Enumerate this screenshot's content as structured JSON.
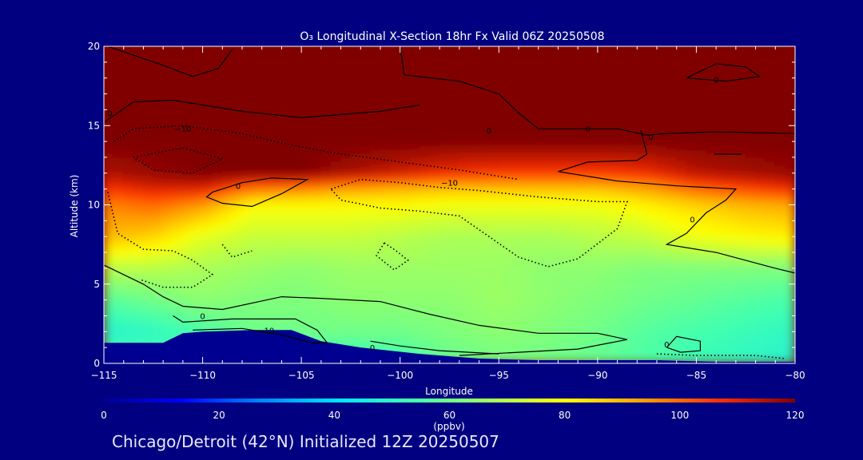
{
  "chart_data": {
    "type": "heatmap",
    "title": "O₃ Longitudinal X-Section 18hr  Fx Valid 06Z 20250508",
    "xlabel": "Longitude",
    "ylabel": "Altitude (km)",
    "xlim": [
      -115,
      -80
    ],
    "ylim": [
      0,
      20
    ],
    "x_ticks": [
      -115,
      -110,
      -105,
      -100,
      -95,
      -90,
      -85,
      -80
    ],
    "x_tick_labels": [
      "−115",
      "−110",
      "−105",
      "−100",
      "−95",
      "−90",
      "−85",
      "−80"
    ],
    "y_ticks": [
      0,
      5,
      10,
      15,
      20
    ],
    "y_tick_labels": [
      "0",
      "5",
      "10",
      "15",
      "20"
    ],
    "colorbar": {
      "label": "(ppbv)",
      "range": [
        0,
        120
      ],
      "ticks": [
        0,
        20,
        40,
        60,
        80,
        100,
        120
      ],
      "tick_labels": [
        "0",
        "20",
        "40",
        "60",
        "80",
        "100",
        "120"
      ],
      "colors": [
        "#000090",
        "#0000ff",
        "#0080ff",
        "#00e0ff",
        "#40ffb0",
        "#a0ff60",
        "#ffff00",
        "#ffa000",
        "#ff3000",
        "#800000"
      ]
    },
    "field_columns": [
      -115,
      -112.5,
      -110,
      -107.5,
      -105,
      -102.5,
      -100,
      -97.5,
      -95,
      -92.5,
      -90,
      -87.5,
      -85,
      -82.5,
      -80
    ],
    "field_levels": [
      {
        "alt": 0,
        "values": [
          58,
          56,
          54,
          52,
          50,
          50,
          52,
          58,
          60,
          60,
          58,
          55,
          52,
          50,
          48
        ]
      },
      {
        "alt": 2,
        "values": [
          48,
          50,
          54,
          60,
          60,
          60,
          60,
          62,
          64,
          62,
          60,
          56,
          54,
          52,
          50
        ]
      },
      {
        "alt": 4,
        "values": [
          56,
          60,
          64,
          62,
          62,
          64,
          64,
          64,
          66,
          64,
          62,
          60,
          58,
          56,
          54
        ]
      },
      {
        "alt": 6,
        "values": [
          70,
          70,
          68,
          66,
          64,
          66,
          66,
          66,
          66,
          64,
          64,
          62,
          62,
          62,
          62
        ]
      },
      {
        "alt": 8,
        "values": [
          90,
          86,
          76,
          72,
          72,
          72,
          70,
          68,
          68,
          68,
          70,
          72,
          78,
          80,
          82
        ]
      },
      {
        "alt": 10,
        "values": [
          96,
          100,
          94,
          80,
          80,
          80,
          80,
          78,
          78,
          78,
          78,
          82,
          86,
          90,
          92
        ]
      },
      {
        "alt": 11,
        "values": [
          106,
          110,
          110,
          98,
          96,
          92,
          90,
          88,
          88,
          88,
          88,
          92,
          100,
          104,
          108
        ]
      },
      {
        "alt": 12,
        "values": [
          115,
          118,
          120,
          120,
          120,
          116,
          112,
          108,
          106,
          106,
          106,
          108,
          114,
          116,
          118
        ]
      },
      {
        "alt": 14,
        "values": [
          120,
          120,
          120,
          120,
          120,
          120,
          120,
          120,
          120,
          120,
          120,
          120,
          120,
          120,
          120
        ]
      },
      {
        "alt": 20,
        "values": [
          120,
          120,
          120,
          120,
          120,
          120,
          120,
          120,
          120,
          120,
          120,
          120,
          120,
          120,
          120
        ]
      }
    ],
    "terrain": [
      {
        "lon": -115,
        "alt": 1.3
      },
      {
        "lon": -112,
        "alt": 1.3
      },
      {
        "lon": -111,
        "alt": 1.9
      },
      {
        "lon": -110,
        "alt": 2.0
      },
      {
        "lon": -107.5,
        "alt": 2.1
      },
      {
        "lon": -105.5,
        "alt": 2.1
      },
      {
        "lon": -104,
        "alt": 1.4
      },
      {
        "lon": -102,
        "alt": 1.0
      },
      {
        "lon": -99,
        "alt": 0.6
      },
      {
        "lon": -96,
        "alt": 0.3
      },
      {
        "lon": -93,
        "alt": 0.2
      },
      {
        "lon": -90,
        "alt": 0.2
      },
      {
        "lon": -87,
        "alt": 0.2
      },
      {
        "lon": -84,
        "alt": 0.1
      },
      {
        "lon": -80,
        "alt": 0.1
      }
    ],
    "contours": [
      {
        "value": 0,
        "style": "solid",
        "points": [
          [
            -114.8,
            20
          ],
          [
            -112,
            18.8
          ],
          [
            -110.5,
            18.1
          ],
          [
            -109.2,
            18.6
          ],
          [
            -108.5,
            19.8
          ]
        ]
      },
      {
        "value": 0,
        "style": "solid",
        "points": [
          [
            -115,
            15.2
          ],
          [
            -113.5,
            16.5
          ],
          [
            -111.5,
            16.6
          ],
          [
            -108,
            15.9
          ],
          [
            -105,
            15.5
          ],
          [
            -101,
            15.9
          ],
          [
            -99,
            16.3
          ]
        ]
      },
      {
        "value": 0,
        "style": "solid",
        "points": [
          [
            -100,
            20
          ],
          [
            -99.8,
            18.2
          ],
          [
            -97,
            17.8
          ],
          [
            -95,
            17
          ],
          [
            -94,
            15.8
          ],
          [
            -93,
            14.8
          ],
          [
            -89,
            14.8
          ],
          [
            -87.5,
            14.4
          ],
          [
            -86.5,
            14.5
          ],
          [
            -84,
            14.6
          ],
          [
            -80,
            14.5
          ]
        ]
      },
      {
        "value": 0,
        "style": "solid",
        "points": [
          [
            -87.8,
            14.7
          ],
          [
            -87.5,
            13.2
          ],
          [
            -88,
            12.8
          ],
          [
            -90.5,
            12.7
          ],
          [
            -92,
            12.1
          ],
          [
            -89,
            11.5
          ],
          [
            -86,
            11.2
          ],
          [
            -83,
            11.0
          ],
          [
            -83.5,
            10.3
          ],
          [
            -84.5,
            9.5
          ],
          [
            -85.5,
            8.2
          ],
          [
            -86.5,
            7.5
          ],
          [
            -84,
            7.0
          ],
          [
            -81,
            6.0
          ],
          [
            -80,
            5.7
          ]
        ]
      },
      {
        "value": 0,
        "style": "solid",
        "points": [
          [
            -84.1,
            13.2
          ],
          [
            -82.7,
            13.2
          ]
        ]
      },
      {
        "value": 0,
        "style": "solid",
        "points": [
          [
            -85.5,
            18.0
          ],
          [
            -84,
            18.9
          ],
          [
            -82.5,
            18.7
          ],
          [
            -81.8,
            18.1
          ],
          [
            -83.5,
            17.8
          ],
          [
            -85.5,
            18.0
          ]
        ]
      },
      {
        "value": 0,
        "style": "solid",
        "points": [
          [
            -109.5,
            10.8
          ],
          [
            -108,
            11.4
          ],
          [
            -106.5,
            11.7
          ],
          [
            -104.7,
            11.6
          ],
          [
            -106,
            10.7
          ],
          [
            -107.5,
            9.9
          ],
          [
            -109,
            10.1
          ],
          [
            -109.8,
            10.5
          ],
          [
            -109.5,
            10.8
          ]
        ]
      },
      {
        "value": 0,
        "style": "solid",
        "points": [
          [
            -115,
            6.2
          ],
          [
            -113,
            5.0
          ],
          [
            -112,
            4.2
          ],
          [
            -111,
            3.6
          ],
          [
            -109,
            3.4
          ],
          [
            -106,
            4.2
          ],
          [
            -104,
            4.1
          ],
          [
            -101,
            3.9
          ],
          [
            -98.5,
            3.1
          ],
          [
            -96,
            2.4
          ],
          [
            -93,
            1.9
          ],
          [
            -90,
            1.9
          ],
          [
            -88.5,
            1.5
          ],
          [
            -91,
            0.9
          ],
          [
            -97,
            0.5
          ]
        ]
      },
      {
        "value": 0,
        "style": "solid",
        "points": [
          [
            -111.5,
            3.0
          ],
          [
            -111,
            2.6
          ],
          [
            -108.5,
            2.8
          ],
          [
            -105.3,
            2.8
          ],
          [
            -104.2,
            2.1
          ],
          [
            -103.7,
            1.3
          ],
          [
            -104.5,
            1.3
          ],
          [
            -106,
            1.8
          ],
          [
            -108,
            2.2
          ],
          [
            -110.5,
            2.1
          ]
        ]
      },
      {
        "value": 0,
        "style": "solid",
        "points": [
          [
            -101.5,
            1.4
          ],
          [
            -100,
            1.1
          ],
          [
            -98,
            0.8
          ],
          [
            -95,
            0.6
          ]
        ]
      },
      {
        "value": 0,
        "style": "solid",
        "points": [
          [
            -86.5,
            1.0
          ],
          [
            -86.0,
            1.7
          ],
          [
            -84.8,
            1.4
          ],
          [
            -84.8,
            0.8
          ],
          [
            -85.8,
            0.7
          ],
          [
            -86.5,
            1.0
          ]
        ]
      },
      {
        "value": -10,
        "style": "dotted",
        "points": [
          [
            -114.5,
            14.0
          ],
          [
            -113.5,
            14.8
          ],
          [
            -111,
            15.0
          ],
          [
            -108,
            14.5
          ],
          [
            -106,
            13.9
          ],
          [
            -103.5,
            13.3
          ],
          [
            -100,
            12.7
          ],
          [
            -97,
            12.2
          ],
          [
            -94,
            11.6
          ]
        ]
      },
      {
        "value": -10,
        "style": "dotted",
        "points": [
          [
            -113.5,
            13.0
          ],
          [
            -111,
            13.6
          ],
          [
            -109,
            12.9
          ],
          [
            -110.5,
            12.0
          ],
          [
            -112.5,
            12.2
          ],
          [
            -113.5,
            13.0
          ]
        ]
      },
      {
        "value": -10,
        "style": "dotted",
        "points": [
          [
            -114.8,
            10.8
          ],
          [
            -114.3,
            8.2
          ],
          [
            -113,
            7.2
          ],
          [
            -111.5,
            7.1
          ],
          [
            -110.5,
            6.5
          ],
          [
            -109.5,
            5.6
          ],
          [
            -110.5,
            4.8
          ],
          [
            -112,
            4.8
          ],
          [
            -113.2,
            5.3
          ]
        ]
      },
      {
        "value": -10,
        "style": "dotted",
        "points": [
          [
            -103.5,
            11.0
          ],
          [
            -102,
            11.6
          ],
          [
            -100,
            11.4
          ],
          [
            -98,
            11.1
          ],
          [
            -96,
            10.9
          ],
          [
            -93,
            10.5
          ],
          [
            -90,
            10.2
          ],
          [
            -88.5,
            10.2
          ],
          [
            -89,
            8.5
          ],
          [
            -91,
            6.6
          ],
          [
            -92.5,
            6.1
          ],
          [
            -94,
            6.7
          ],
          [
            -95.5,
            8.0
          ],
          [
            -97,
            9.3
          ],
          [
            -99,
            9.6
          ],
          [
            -101,
            9.8
          ],
          [
            -103,
            10.3
          ],
          [
            -103.5,
            11.0
          ]
        ]
      },
      {
        "value": -10,
        "style": "dotted",
        "points": [
          [
            -100.8,
            7.6
          ],
          [
            -100.2,
            7.1
          ],
          [
            -99.6,
            6.5
          ],
          [
            -100.3,
            5.9
          ],
          [
            -101.2,
            6.8
          ],
          [
            -100.8,
            7.6
          ]
        ]
      },
      {
        "value": -10,
        "style": "dotted",
        "points": [
          [
            -109,
            7.5
          ],
          [
            -108.5,
            6.7
          ],
          [
            -107.5,
            7.1
          ]
        ]
      },
      {
        "value": -10,
        "style": "dotted",
        "points": [
          [
            -87,
            0.6
          ],
          [
            -85,
            0.5
          ],
          [
            -82,
            0.5
          ],
          [
            -80.5,
            0.3
          ]
        ]
      }
    ],
    "contour_labels": [
      {
        "text": "0",
        "lon": -90.5,
        "alt": 14.8
      },
      {
        "text": "0",
        "lon": -84,
        "alt": 17.9
      },
      {
        "text": "0",
        "lon": -87.3,
        "alt": 14.3
      },
      {
        "text": "0",
        "lon": -85.2,
        "alt": 9.1
      },
      {
        "text": "0",
        "lon": -108.2,
        "alt": 11.2
      },
      {
        "text": "0",
        "lon": -110,
        "alt": 3.0
      },
      {
        "text": "0",
        "lon": -101.4,
        "alt": 1.0
      },
      {
        "text": "0",
        "lon": -86.5,
        "alt": 1.2
      },
      {
        "text": "0",
        "lon": -114.7,
        "alt": 15.8
      },
      {
        "text": "0",
        "lon": -95.5,
        "alt": 14.7
      },
      {
        "text": "−10",
        "lon": -111,
        "alt": 14.8
      },
      {
        "text": "−10",
        "lon": -97.5,
        "alt": 11.4
      },
      {
        "text": "−10",
        "lon": -106.8,
        "alt": 2.1
      }
    ]
  },
  "footer": {
    "text": "Chicago/Detroit (42°N) Initialized 12Z 20250507"
  }
}
